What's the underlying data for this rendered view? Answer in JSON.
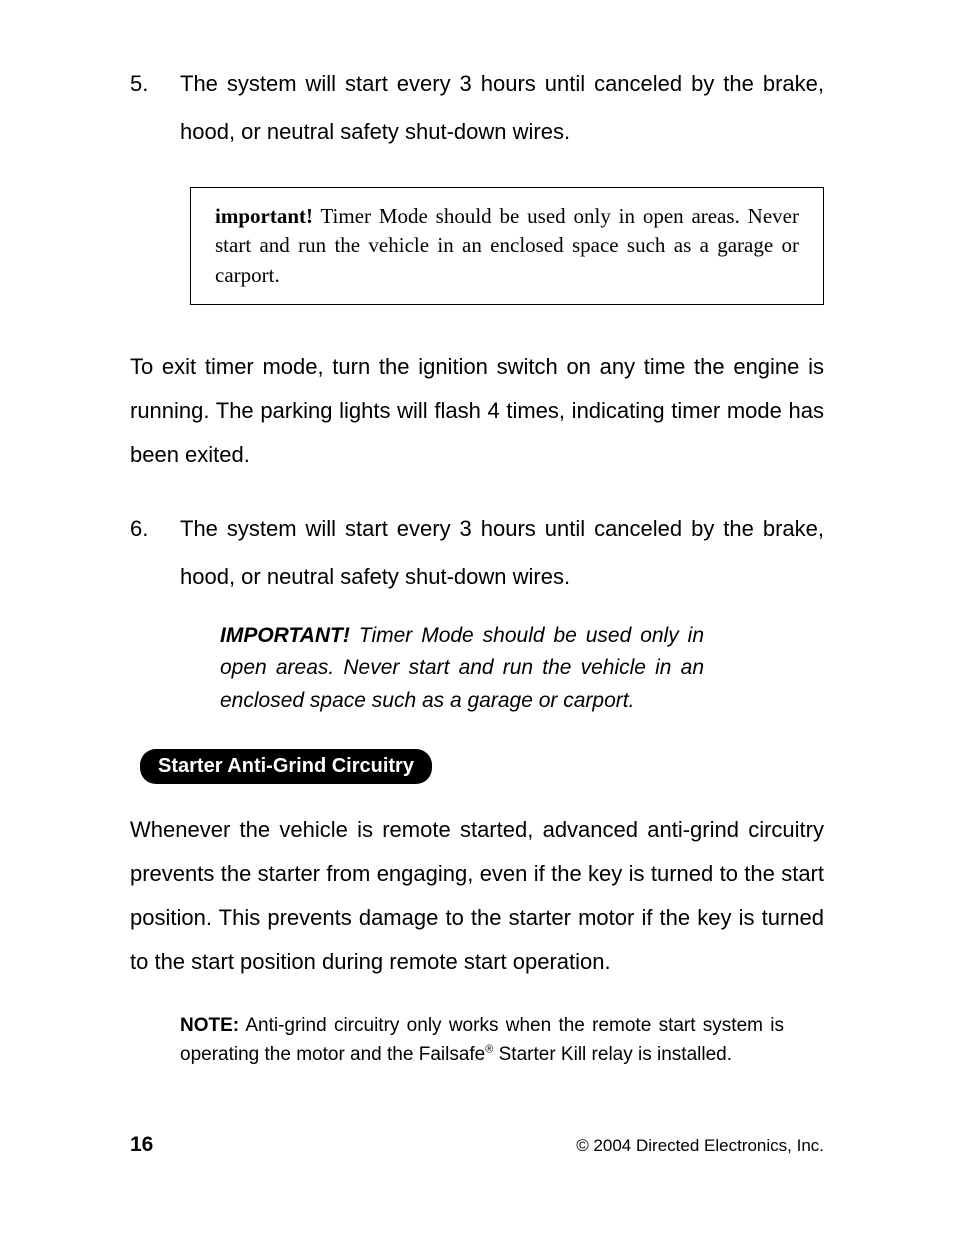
{
  "colors": {
    "page_bg": "#ffffff",
    "text": "#000000",
    "pill_bg": "#000000",
    "pill_text": "#ffffff",
    "box_border": "#000000"
  },
  "typography": {
    "body_family": "sans-serif",
    "body_size_pt": 22,
    "callout_family": "serif",
    "callout_size_pt": 21,
    "note_size_pt": 19,
    "pill_size_pt": 20,
    "pagenum_size_pt": 21,
    "copyright_size_pt": 17
  },
  "item5": {
    "num": "5.",
    "text": "The system will start every 3 hours until canceled by the brake, hood, or neutral safety shut-down wires."
  },
  "callout": {
    "label": "important!",
    "text": " Timer Mode should be used only in open areas. Never start and run the vehicle in an enclosed space such as a garage or carport."
  },
  "exit_para": "To exit timer mode, turn the ignition switch on any time the engine is running. The parking lights will flash 4 times, indicating timer mode has been exited.",
  "item6": {
    "num": "6.",
    "text": "The system will start every 3 hours until canceled by the brake, hood, or neutral safety shut-down wires."
  },
  "inset": {
    "label": "IMPORTANT!",
    "text": " Timer Mode should be used only in open areas. Never start and run the vehicle in an enclosed space such as a garage or carport."
  },
  "section": {
    "title": "Starter Anti-Grind Circuitry"
  },
  "antigrind_para": "Whenever the vehicle is remote started, advanced anti-grind circuitry prevents the starter from engaging, even if the key is turned to the start position. This prevents damage to the starter motor if the key is turned to the start position during remote start operation.",
  "note": {
    "label": "NOTE:",
    "text_pre": " Anti-grind circuitry only works when the remote start system is operating the motor and the Failsafe",
    "reg": "®",
    "text_post": " Starter Kill relay is installed."
  },
  "footer": {
    "page": "16",
    "copyright": "© 2004 Directed Electronics, Inc."
  }
}
